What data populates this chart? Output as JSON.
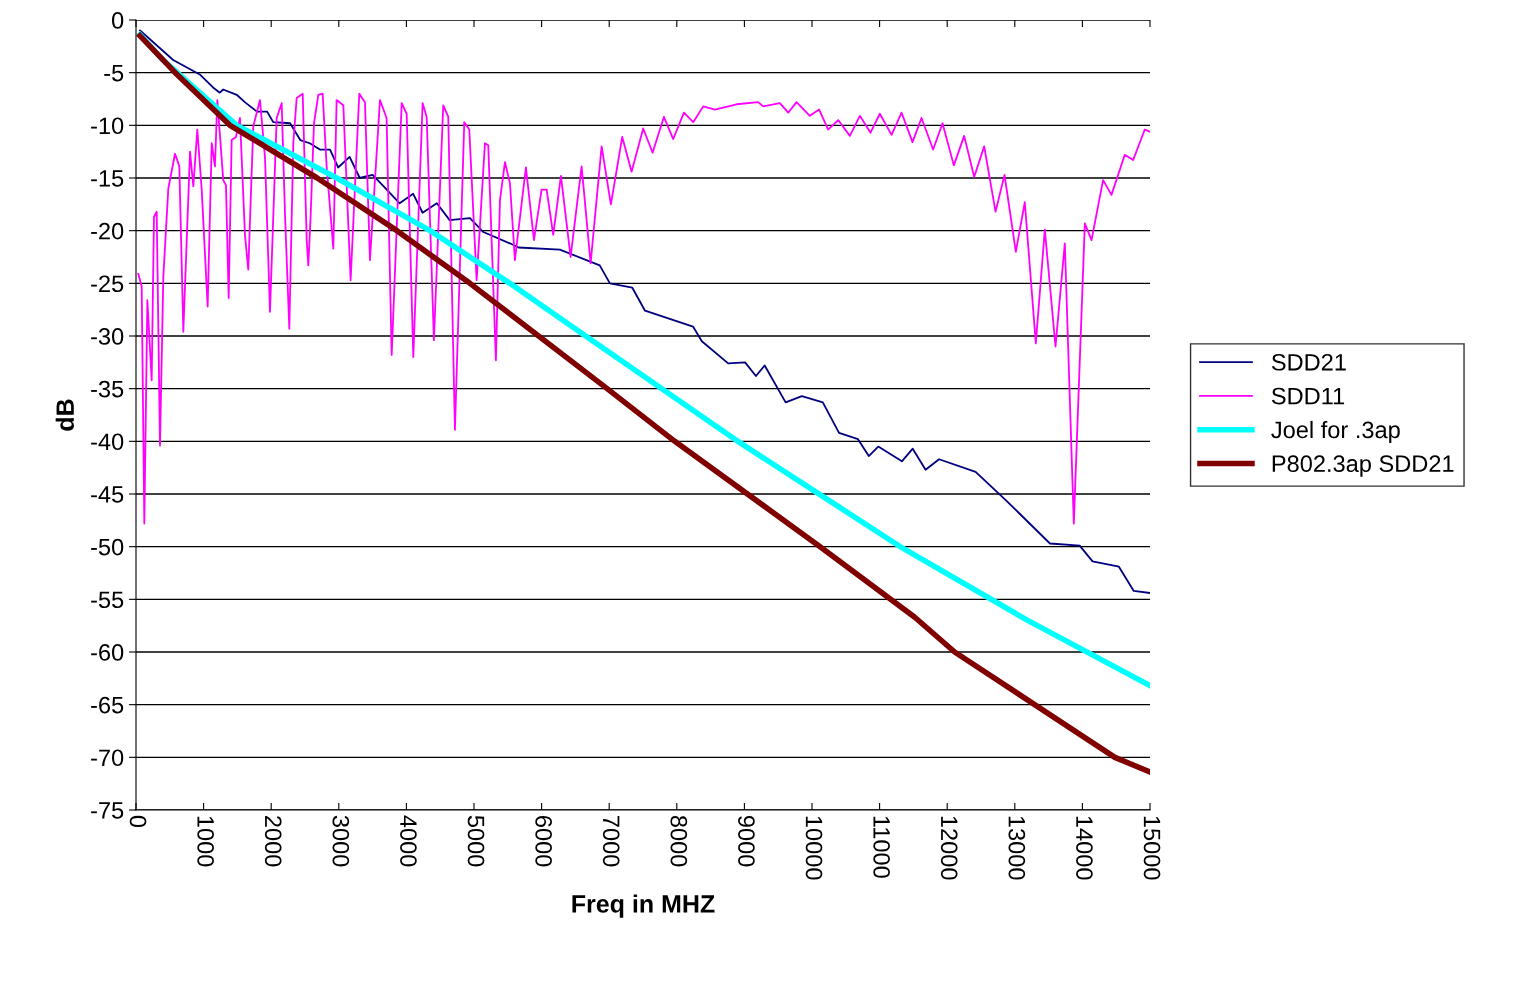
{
  "chart_data": {
    "type": "line",
    "xlabel": "Freq in MHZ",
    "ylabel": "dB",
    "xlim": [
      0,
      15000
    ],
    "xticks": [
      0,
      1000,
      2000,
      3000,
      4000,
      5000,
      6000,
      7000,
      8000,
      9000,
      10000,
      11000,
      12000,
      13000,
      14000,
      15000
    ],
    "ylim": [
      -75,
      0
    ],
    "yticks": [
      -75,
      -70,
      -65,
      -60,
      -55,
      -50,
      -45,
      -40,
      -35,
      -30,
      -25,
      -20,
      -15,
      -10,
      -5,
      0
    ],
    "grid": "y",
    "legend": "right",
    "marker": "none",
    "line_style": "solid",
    "series": [
      {
        "name": "SDD21",
        "color": "#000080",
        "x": [
          60,
          550,
          950,
          1140,
          1240,
          1290,
          1490,
          1610,
          1790,
          1940,
          2030,
          2280,
          2430,
          2570,
          2720,
          2870,
          2990,
          3160,
          3310,
          3500,
          3710,
          3900,
          4100,
          4240,
          4450,
          4640,
          4940,
          5090,
          5130,
          5530,
          5660,
          6270,
          6860,
          7010,
          7340,
          7530,
          8240,
          8370,
          8760,
          9010,
          9170,
          9300,
          9610,
          9850,
          10160,
          10400,
          10680,
          10840,
          10980,
          11330,
          11490,
          11680,
          11880,
          12420,
          12870,
          13520,
          13960,
          14150,
          14540,
          14760,
          15000
        ],
        "values": [
          -1,
          -3.8,
          -5.2,
          -6.4,
          -6.9,
          -6.6,
          -7.1,
          -7.8,
          -8.7,
          -8.7,
          -9.7,
          -9.8,
          -11.4,
          -11.7,
          -12.3,
          -12.3,
          -14,
          -13,
          -15,
          -14.7,
          -16.1,
          -17.4,
          -16.5,
          -18.3,
          -17.4,
          -19,
          -18.8,
          -19.8,
          -20.1,
          -21.2,
          -21.6,
          -21.8,
          -23.3,
          -25,
          -25.4,
          -27.6,
          -29.1,
          -30.5,
          -32.6,
          -32.5,
          -33.8,
          -32.8,
          -36.3,
          -35.7,
          -36.3,
          -39.2,
          -39.8,
          -41.4,
          -40.5,
          -41.9,
          -40.7,
          -42.7,
          -41.7,
          -42.9,
          -45.6,
          -49.7,
          -49.9,
          -51.4,
          -51.9,
          -54.2,
          -54.4
        ]
      },
      {
        "name": "SDD11",
        "color": "#ff00ff",
        "x": [
          34,
          84,
          123,
          168,
          232,
          266,
          306,
          355,
          404,
          478,
          577,
          641,
          700,
          799,
          848,
          907,
          972,
          1060,
          1120,
          1168,
          1203,
          1291,
          1331,
          1371,
          1415,
          1479,
          1538,
          1612,
          1661,
          1735,
          1834,
          1908,
          1982,
          2081,
          2155,
          2204,
          2268,
          2327,
          2377,
          2466,
          2525,
          2549,
          2584,
          2633,
          2697,
          2761,
          2820,
          2919,
          2968,
          3067,
          3175,
          3303,
          3387,
          3461,
          3609,
          3707,
          3782,
          3930,
          4004,
          4102,
          4240,
          4300,
          4407,
          4545,
          4619,
          4718,
          4856,
          4930,
          5039,
          5162,
          5211,
          5324,
          5384,
          5458,
          5532,
          5605,
          5768,
          5887,
          6000,
          6074,
          6172,
          6286,
          6429,
          6592,
          6725,
          6888,
          7025,
          7193,
          7331,
          7503,
          7642,
          7809,
          7947,
          8105,
          8243,
          8391,
          8564,
          8884,
          9204,
          9278,
          9525,
          9648,
          9771,
          9968,
          10106,
          10239,
          10387,
          10560,
          10708,
          10866,
          11004,
          11177,
          11325,
          11487,
          11620,
          11792,
          11931,
          12098,
          12251,
          12399,
          12547,
          12715,
          12848,
          13015,
          13148,
          13311,
          13444,
          13602,
          13740,
          13873,
          14036,
          14135,
          14306,
          14430,
          14627,
          14750,
          14923,
          15000
        ],
        "values": [
          -24.1,
          -25.3,
          -47.8,
          -26.6,
          -34.2,
          -18.7,
          -18.2,
          -40.4,
          -24.4,
          -16,
          -12.7,
          -13.9,
          -29.6,
          -12.5,
          -15.8,
          -10.4,
          -16.1,
          -27.2,
          -11.7,
          -13.9,
          -7.6,
          -15.2,
          -15.7,
          -26.4,
          -11.4,
          -11.1,
          -9.3,
          -20.4,
          -23.7,
          -10.1,
          -7.6,
          -13,
          -27.7,
          -9.3,
          -7.9,
          -18.4,
          -29.3,
          -11.7,
          -7.4,
          -7,
          -20.9,
          -23.3,
          -18.5,
          -9.8,
          -7.1,
          -7,
          -13.9,
          -21.7,
          -7.6,
          -8.1,
          -24.7,
          -7,
          -7.8,
          -22.8,
          -7.6,
          -9.3,
          -31.8,
          -7.9,
          -8.9,
          -32,
          -7.9,
          -9.2,
          -30.4,
          -8.1,
          -9.2,
          -38.9,
          -9.7,
          -10.4,
          -24.7,
          -11.7,
          -11.9,
          -32.3,
          -17.1,
          -13.5,
          -15.5,
          -22.8,
          -14,
          -20.9,
          -16.1,
          -16.1,
          -20.4,
          -14.8,
          -22.5,
          -13.9,
          -23.1,
          -12,
          -17.5,
          -11.1,
          -14.4,
          -10.3,
          -12.6,
          -9.2,
          -11.3,
          -8.8,
          -9.7,
          -8.2,
          -8.5,
          -8,
          -7.8,
          -8.2,
          -7.9,
          -8.8,
          -7.8,
          -9.1,
          -8.5,
          -10.4,
          -9.5,
          -11,
          -9.1,
          -10.7,
          -8.9,
          -10.9,
          -8.8,
          -11.6,
          -9.3,
          -12.3,
          -9.8,
          -13.8,
          -11,
          -14.9,
          -12,
          -18.2,
          -14.7,
          -22,
          -17.3,
          -30.7,
          -19.9,
          -31,
          -21.2,
          -47.8,
          -19.3,
          -20.9,
          -15.2,
          -16.6,
          -12.8,
          -13.3,
          -10.4,
          -10.6
        ]
      },
      {
        "name": "Joel for .3ap",
        "color": "#00ffff",
        "x": [
          60,
          400,
          1490,
          2970,
          4350,
          5530,
          6630,
          8950,
          11330,
          13190,
          15000
        ],
        "values": [
          -1.4,
          -3.8,
          -10,
          -15,
          -20,
          -25,
          -29.9,
          -40.2,
          -50.1,
          -57,
          -63.2
        ]
      },
      {
        "name": "P802.3ap SDD21",
        "color": "#800000",
        "x": [
          60,
          580,
          1390,
          2680,
          3860,
          4940,
          6950,
          7970,
          10120,
          11520,
          12110,
          14480,
          15000
        ],
        "values": [
          -1.5,
          -5,
          -10,
          -15,
          -20,
          -25,
          -34.9,
          -40,
          -50,
          -56.7,
          -60,
          -70,
          -71.4
        ]
      }
    ]
  }
}
